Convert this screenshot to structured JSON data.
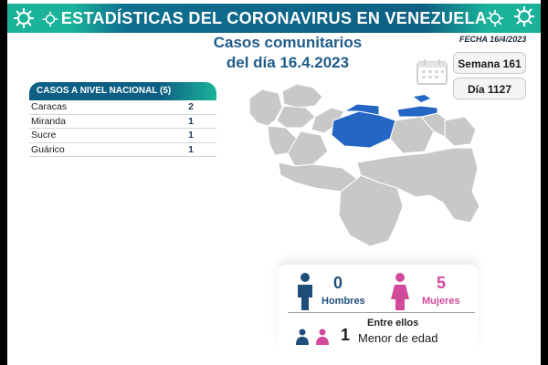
{
  "header": {
    "title": "ESTADÍSTICAS DEL CORONAVIRUS EN VENEZUELA"
  },
  "subtitle": {
    "line1": "Casos comunitarios",
    "line2": "del día 16.4.2023"
  },
  "fecha": "FECHA 16/4/2023",
  "semana": "Semana 161",
  "dia": "Día 1127",
  "cases": {
    "header": "CASOS A NIVEL NACIONAL  (5)",
    "rows": [
      {
        "name": "Caracas",
        "value": "2"
      },
      {
        "name": "Miranda",
        "value": "1"
      },
      {
        "name": "Sucre",
        "value": "1"
      },
      {
        "name": "Guárico",
        "value": "1"
      }
    ]
  },
  "stats": {
    "men_count": "0",
    "men_label": "Hombres",
    "women_count": "5",
    "women_label": "Mujeres",
    "among_label": "Entre ellos",
    "minor_count": "1",
    "minor_label": "Menor de edad"
  },
  "colors": {
    "header_dark": "#0e5f84",
    "header_teal": "#1ab39a",
    "highlight_state": "#2466c4",
    "map_gray": "#c8c8c8",
    "men": "#1f4e79",
    "women": "#d24a9c"
  },
  "map": {
    "highlighted_states": [
      "Guárico",
      "Miranda",
      "Caracas",
      "Sucre"
    ]
  }
}
